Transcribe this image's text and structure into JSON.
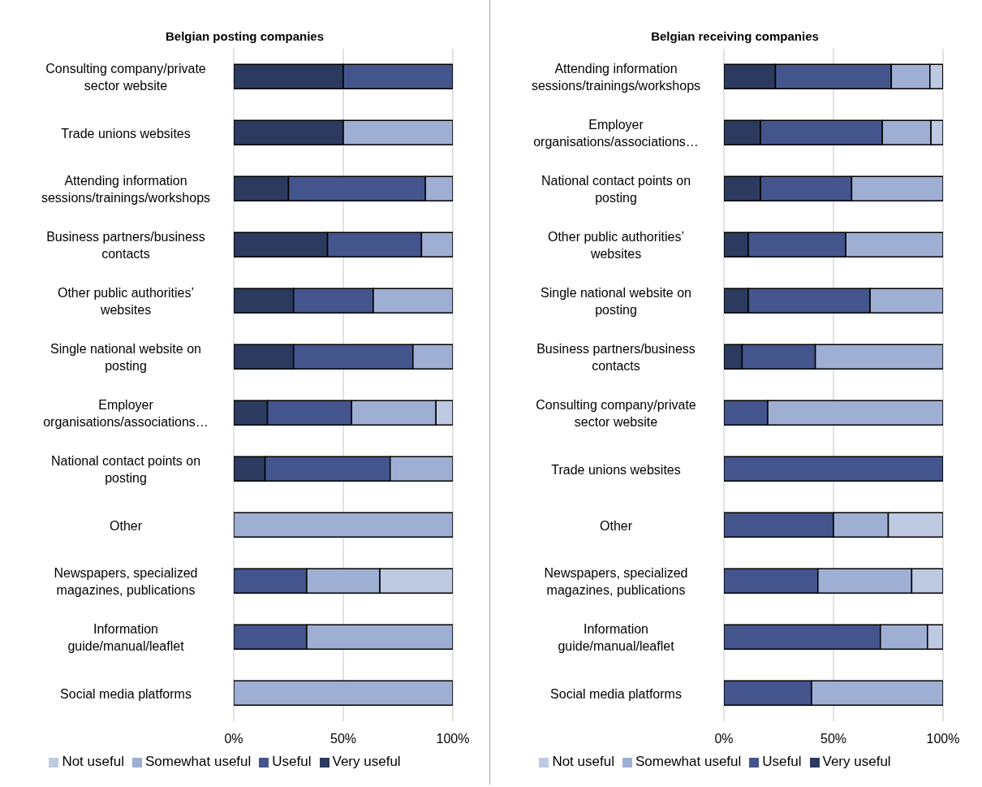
{
  "chart_data": [
    {
      "type": "bar",
      "title": "Belgian posting companies",
      "orientation": "horizontal",
      "stacked": true,
      "grid": "x",
      "legend": "bottom",
      "categories": [
        "Consulting company/private sector website",
        "Trade unions websites",
        "Attending information sessions/trainings/workshops",
        "Business partners/business contacts",
        "Other public authorities’ websites",
        "Single national website on posting",
        "Employer organisations/associations…",
        "National contact points on posting",
        "Other",
        "Newspapers, specialized magazines, publications",
        "Information guide/manual/leaflet",
        "Social media platforms"
      ],
      "xlim": [
        0,
        100
      ],
      "xticks": [
        {
          "value": 0,
          "label": "0%"
        },
        {
          "value": 50,
          "label": "50%"
        },
        {
          "value": 100,
          "label": "100%"
        }
      ],
      "series": [
        {
          "name": "Very useful",
          "color": "#2b3a5e",
          "values": [
            50,
            50,
            25,
            42.8,
            27.3,
            27.3,
            15.4,
            14.3,
            0,
            0,
            0,
            0
          ]
        },
        {
          "name": "Useful",
          "color": "#43558c",
          "values": [
            50,
            0,
            62.5,
            42.9,
            36.4,
            54.5,
            38.4,
            57.1,
            0,
            33.3,
            33.3,
            0
          ]
        },
        {
          "name": "Somewhat useful",
          "color": "#9fafd4",
          "values": [
            0,
            50,
            12.5,
            14.3,
            36.3,
            18.2,
            38.5,
            28.6,
            100,
            33.4,
            66.7,
            100
          ]
        },
        {
          "name": "Not useful",
          "color": "#bec9e2",
          "values": [
            0,
            0,
            0,
            0,
            0,
            0,
            7.7,
            0,
            0,
            33.3,
            0,
            0
          ]
        }
      ]
    },
    {
      "type": "bar",
      "title": "Belgian receiving companies",
      "orientation": "horizontal",
      "stacked": true,
      "grid": "x",
      "legend": "bottom",
      "categories": [
        "Attending information sessions/trainings/workshops",
        "Employer organisations/associations…",
        "National contact points on posting",
        "Other public authorities’ websites",
        "Single national website on posting",
        "Business partners/business contacts",
        "Consulting company/private sector website",
        "Trade unions websites",
        "Other",
        "Newspapers, specialized magazines, publications",
        "Information guide/manual/leaflet",
        "Social media platforms"
      ],
      "xlim": [
        0,
        100
      ],
      "xticks": [
        {
          "value": 0,
          "label": "0%"
        },
        {
          "value": 50,
          "label": "50%"
        },
        {
          "value": 100,
          "label": "100%"
        }
      ],
      "series": [
        {
          "name": "Very useful",
          "color": "#2b3a5e",
          "values": [
            23.5,
            16.7,
            16.7,
            11.1,
            11.1,
            8.3,
            0,
            0,
            0,
            0,
            0,
            0
          ]
        },
        {
          "name": "Useful",
          "color": "#43558c",
          "values": [
            52.9,
            55.6,
            41.6,
            44.5,
            55.6,
            33.4,
            20,
            100,
            50,
            42.9,
            71.4,
            40
          ]
        },
        {
          "name": "Somewhat useful",
          "color": "#9fafd4",
          "values": [
            17.6,
            22.2,
            41.7,
            44.4,
            33.3,
            58.3,
            80,
            0,
            25,
            42.8,
            21.5,
            60
          ]
        },
        {
          "name": "Not useful",
          "color": "#bec9e2",
          "values": [
            5.9,
            5.5,
            0,
            0,
            0,
            0,
            0,
            0,
            25,
            14.3,
            7.1,
            0
          ]
        }
      ]
    }
  ]
}
